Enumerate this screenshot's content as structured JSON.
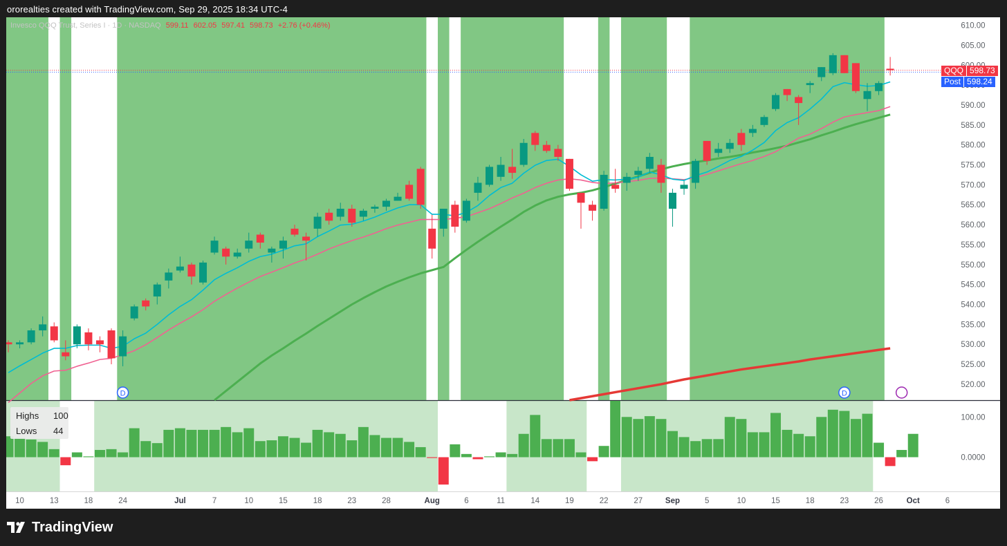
{
  "caption": "ororealties created with TradingView.com, Sep 29, 2025 18:34 UTC-4",
  "brand": "TradingView",
  "colors": {
    "up": "#089981",
    "down": "#f23645",
    "green_band": "#81c784",
    "ema_fast": "#00bcd4",
    "ema_mid": "#f06292",
    "sma_mid": "#4caf50",
    "sma_long": "#e53935",
    "panel_band": "#c8e6c9",
    "hist": "#4caf50",
    "hist_neg": "#f23645"
  },
  "legend": {
    "symbol": "Invesco QQQ Trust, Series I · 1D · NASDAQ",
    "o": "599.11",
    "h": "602.05",
    "l": "597.41",
    "c": "598.73",
    "chg": "+2.76 (+0.46%)"
  },
  "price_tags": [
    {
      "name": "QQQ",
      "value": "598.73",
      "color": "#f23645"
    },
    {
      "name": "Post",
      "value": "598.24",
      "color": "#2962ff"
    }
  ],
  "stats": {
    "highs_label": "Highs",
    "highs_value": "100",
    "lows_label": "Lows",
    "lows_value": "44"
  },
  "chart_data": {
    "type": "candlestick",
    "title": "",
    "y_ticks": [
      520,
      525,
      530,
      535,
      540,
      545,
      550,
      555,
      560,
      565,
      570,
      575,
      580,
      585,
      590,
      595,
      600,
      605,
      610
    ],
    "ylim": [
      516,
      612
    ],
    "x_tick_labels": [
      {
        "label": "10",
        "i": 1
      },
      {
        "label": "13",
        "i": 4
      },
      {
        "label": "18",
        "i": 7
      },
      {
        "label": "24",
        "i": 10
      },
      {
        "label": "Jul",
        "i": 15
      },
      {
        "label": "7",
        "i": 18
      },
      {
        "label": "10",
        "i": 21
      },
      {
        "label": "15",
        "i": 24
      },
      {
        "label": "18",
        "i": 27
      },
      {
        "label": "23",
        "i": 30
      },
      {
        "label": "28",
        "i": 33
      },
      {
        "label": "Aug",
        "i": 37
      },
      {
        "label": "6",
        "i": 40
      },
      {
        "label": "11",
        "i": 43
      },
      {
        "label": "14",
        "i": 46
      },
      {
        "label": "19",
        "i": 49
      },
      {
        "label": "22",
        "i": 52
      },
      {
        "label": "27",
        "i": 55
      },
      {
        "label": "Sep",
        "i": 58
      },
      {
        "label": "5",
        "i": 61
      },
      {
        "label": "10",
        "i": 64
      },
      {
        "label": "15",
        "i": 67
      },
      {
        "label": "18",
        "i": 70
      },
      {
        "label": "23",
        "i": 73
      },
      {
        "label": "26",
        "i": 76
      },
      {
        "label": "Oct",
        "i": 79
      },
      {
        "label": "6",
        "i": 82
      }
    ],
    "candles": [
      [
        530.5,
        531.0,
        528.0,
        530.0
      ],
      [
        530.0,
        531.0,
        529.0,
        530.5
      ],
      [
        530.5,
        534.0,
        530.0,
        533.5
      ],
      [
        533.5,
        537.0,
        532.0,
        535.0
      ],
      [
        534.5,
        535.5,
        530.5,
        531.0
      ],
      [
        528.0,
        531.0,
        526.0,
        527.0
      ],
      [
        530.0,
        535.0,
        529.0,
        534.5
      ],
      [
        533.0,
        534.0,
        528.5,
        530.0
      ],
      [
        531.0,
        532.0,
        528.0,
        530.0
      ],
      [
        533.5,
        534.0,
        525.0,
        526.5
      ],
      [
        527.0,
        533.5,
        524.5,
        532.0
      ],
      [
        536.5,
        540.0,
        536.0,
        539.5
      ],
      [
        541.0,
        541.5,
        538.5,
        539.5
      ],
      [
        542.0,
        545.5,
        540.0,
        545.0
      ],
      [
        546.0,
        549.0,
        544.0,
        548.0
      ],
      [
        548.5,
        552.0,
        548.0,
        549.5
      ],
      [
        550.0,
        550.5,
        545.0,
        547.0
      ],
      [
        545.5,
        551.0,
        545.0,
        550.5
      ],
      [
        553.0,
        557.0,
        552.5,
        556.0
      ],
      [
        554.0,
        554.5,
        550.0,
        552.0
      ],
      [
        552.0,
        554.0,
        551.5,
        553.0
      ],
      [
        554.0,
        558.0,
        553.0,
        556.0
      ],
      [
        557.5,
        558.0,
        554.0,
        555.5
      ],
      [
        553.0,
        554.5,
        550.5,
        554.0
      ],
      [
        554.0,
        557.0,
        551.5,
        556.0
      ],
      [
        559.0,
        560.0,
        557.0,
        557.5
      ],
      [
        557.0,
        558.0,
        551.0,
        556.0
      ],
      [
        559.0,
        563.0,
        557.0,
        562.0
      ],
      [
        563.0,
        564.0,
        560.0,
        561.0
      ],
      [
        562.0,
        565.5,
        561.0,
        564.0
      ],
      [
        564.0,
        565.0,
        559.5,
        560.5
      ],
      [
        562.0,
        564.0,
        561.0,
        563.5
      ],
      [
        564.0,
        565.0,
        563.0,
        564.5
      ],
      [
        564.5,
        566.5,
        563.5,
        566.0
      ],
      [
        566.0,
        568.0,
        566.0,
        567.0
      ],
      [
        570.0,
        571.0,
        566.0,
        566.5
      ],
      [
        574.0,
        574.5,
        564.0,
        565.0
      ],
      [
        559.0,
        562.5,
        551.5,
        554.0
      ],
      [
        559.0,
        564.0,
        557.0,
        564.0
      ],
      [
        565.0,
        566.0,
        558.0,
        559.5
      ],
      [
        561.0,
        566.5,
        560.5,
        566.0
      ],
      [
        568.0,
        572.0,
        566.0,
        570.5
      ],
      [
        570.0,
        575.0,
        569.5,
        574.5
      ],
      [
        572.0,
        577.0,
        571.0,
        575.0
      ],
      [
        574.5,
        579.0,
        571.5,
        573.0
      ],
      [
        575.0,
        581.5,
        574.5,
        580.5
      ],
      [
        583.0,
        583.5,
        578.5,
        580.0
      ],
      [
        580.0,
        581.0,
        578.0,
        578.5
      ],
      [
        579.0,
        580.0,
        576.0,
        577.0
      ],
      [
        576.5,
        576.5,
        568.5,
        569.0
      ],
      [
        568.0,
        568.0,
        559.0,
        565.5
      ],
      [
        565.0,
        566.0,
        561.0,
        563.5
      ],
      [
        564.0,
        573.5,
        563.5,
        572.5
      ],
      [
        570.0,
        574.0,
        568.0,
        569.0
      ],
      [
        570.5,
        573.0,
        568.5,
        572.0
      ],
      [
        572.5,
        574.5,
        571.0,
        573.5
      ],
      [
        574.0,
        578.0,
        573.0,
        577.0
      ],
      [
        575.0,
        576.5,
        568.0,
        570.5
      ],
      [
        564.0,
        569.0,
        559.5,
        568.0
      ],
      [
        569.0,
        571.0,
        567.5,
        570.0
      ],
      [
        570.5,
        576.5,
        569.0,
        576.0
      ],
      [
        581.0,
        581.0,
        575.0,
        576.0
      ],
      [
        578.0,
        580.5,
        577.0,
        579.0
      ],
      [
        579.0,
        581.5,
        578.0,
        580.5
      ],
      [
        583.0,
        584.0,
        578.5,
        580.0
      ],
      [
        583.0,
        585.0,
        582.0,
        584.0
      ],
      [
        585.0,
        587.5,
        584.5,
        587.0
      ],
      [
        589.0,
        593.0,
        588.5,
        592.5
      ],
      [
        594.0,
        594.0,
        591.0,
        592.5
      ],
      [
        592.0,
        592.5,
        585.0,
        590.5
      ],
      [
        595.0,
        596.0,
        593.0,
        595.5
      ],
      [
        597.0,
        599.5,
        596.0,
        599.5
      ],
      [
        598.0,
        603.0,
        597.5,
        602.5
      ],
      [
        602.5,
        602.5,
        598.0,
        598.0
      ],
      [
        600.5,
        600.5,
        593.0,
        593.5
      ],
      [
        591.5,
        595.5,
        588.5,
        593.5
      ],
      [
        593.5,
        596.0,
        592.5,
        595.5
      ],
      [
        599.1,
        602.05,
        597.41,
        598.73
      ]
    ],
    "ema_fast": [
      522.9,
      524.6,
      526.2,
      527.8,
      529.0,
      529.0,
      529.7,
      529.8,
      529.8,
      529.0,
      529.5,
      531.4,
      532.8,
      535.0,
      537.4,
      539.5,
      541.2,
      543.6,
      546.2,
      547.8,
      549.2,
      550.8,
      552.0,
      552.6,
      553.6,
      554.7,
      555.2,
      557.0,
      558.4,
      559.9,
      560.1,
      560.9,
      561.9,
      563.1,
      564.2,
      565.0,
      565.0,
      562.6,
      562.6,
      562.2,
      563.1,
      564.8,
      567.3,
      569.3,
      570.4,
      572.9,
      574.9,
      576.1,
      576.4,
      574.6,
      572.5,
      570.9,
      571.3,
      571.2,
      571.4,
      571.9,
      573.2,
      572.5,
      571.4,
      571.1,
      572.3,
      573.2,
      574.6,
      576.1,
      577.1,
      578.7,
      580.6,
      583.6,
      585.6,
      586.8,
      589.0,
      591.5,
      594.6,
      595.6,
      595.1,
      594.7,
      594.9,
      595.8
    ],
    "ema_mid": [
      515.4,
      517.8,
      520.2,
      522.1,
      523.3,
      523.5,
      524.5,
      525.3,
      526.2,
      526.5,
      527.4,
      528.4,
      529.9,
      531.7,
      533.6,
      535.3,
      536.9,
      538.7,
      540.8,
      542.5,
      544.1,
      545.6,
      547.0,
      548.1,
      549.2,
      550.4,
      551.4,
      552.6,
      553.9,
      555.0,
      556.0,
      556.9,
      557.9,
      559.0,
      559.9,
      560.6,
      561.3,
      561.3,
      561.3,
      561.6,
      562.0,
      563.0,
      564.0,
      565.3,
      566.7,
      567.9,
      569.3,
      570.4,
      571.2,
      571.5,
      571.2,
      570.6,
      570.3,
      570.5,
      570.8,
      571.1,
      571.6,
      571.7,
      571.5,
      571.3,
      571.8,
      572.6,
      573.5,
      574.4,
      575.3,
      576.1,
      577.1,
      578.3,
      580.0,
      581.7,
      582.7,
      584.1,
      585.7,
      587.0,
      587.6,
      588.1,
      588.6,
      589.6
    ],
    "sma_mid": [
      null,
      null,
      null,
      null,
      null,
      null,
      null,
      null,
      null,
      null,
      null,
      null,
      null,
      null,
      null,
      null,
      null,
      null,
      516.0,
      518.3,
      520.6,
      522.9,
      525.2,
      527.2,
      529.0,
      530.9,
      532.7,
      534.6,
      536.4,
      538.2,
      540.0,
      541.6,
      543.1,
      544.5,
      545.7,
      546.8,
      547.8,
      548.6,
      549.4,
      551.6,
      553.7,
      555.7,
      557.6,
      559.5,
      561.3,
      563.2,
      564.8,
      566.1,
      567.0,
      567.6,
      568.0,
      568.6,
      569.4,
      570.3,
      571.2,
      572.1,
      573.0,
      573.9,
      574.6,
      575.2,
      575.7,
      576.1,
      576.6,
      577.0,
      577.5,
      578.1,
      578.6,
      579.2,
      579.8,
      580.6,
      581.4,
      582.4,
      583.3,
      584.3,
      585.2,
      586.0,
      586.8,
      587.6
    ],
    "sma_long": [
      null,
      null,
      null,
      null,
      null,
      null,
      null,
      null,
      null,
      null,
      null,
      null,
      null,
      null,
      null,
      null,
      null,
      null,
      null,
      null,
      null,
      null,
      null,
      null,
      null,
      null,
      null,
      null,
      null,
      null,
      null,
      null,
      null,
      null,
      null,
      null,
      null,
      null,
      null,
      null,
      null,
      null,
      null,
      null,
      null,
      null,
      null,
      null,
      null,
      516.0,
      516.5,
      517.0,
      517.5,
      518.0,
      518.5,
      519.0,
      519.5,
      520.0,
      520.6,
      521.2,
      521.7,
      522.2,
      522.7,
      523.2,
      523.7,
      524.1,
      524.5,
      524.9,
      525.3,
      525.7,
      526.2,
      526.6,
      527.0,
      527.4,
      527.8,
      528.2,
      528.6,
      529.0
    ],
    "band_regions": [
      [
        0,
        3
      ],
      [
        5,
        5
      ],
      [
        10,
        36
      ],
      [
        38,
        38
      ],
      [
        40,
        48
      ],
      [
        52,
        52
      ],
      [
        54,
        57
      ],
      [
        60,
        76
      ]
    ],
    "lower_panel": {
      "type": "bar",
      "y_ticks": [
        0,
        100
      ],
      "y_tick_labels": [
        "0.0000",
        "100.00"
      ],
      "ylim": [
        -85,
        140
      ],
      "values": [
        52,
        48,
        44,
        38,
        20,
        -20,
        12,
        2,
        18,
        20,
        12,
        72,
        40,
        35,
        68,
        72,
        68,
        68,
        68,
        75,
        62,
        72,
        40,
        42,
        52,
        48,
        36,
        68,
        62,
        58,
        42,
        75,
        55,
        48,
        48,
        38,
        25,
        -2,
        -68,
        32,
        8,
        -5,
        2,
        12,
        8,
        58,
        105,
        45,
        45,
        45,
        12,
        -10,
        28,
        140,
        100,
        95,
        102,
        95,
        65,
        50,
        40,
        45,
        45,
        100,
        95,
        62,
        62,
        110,
        68,
        58,
        52,
        100,
        118,
        115,
        95,
        108,
        36,
        -22,
        18,
        58
      ],
      "band_regions": [
        [
          0,
          4
        ],
        [
          8,
          37
        ],
        [
          44,
          50
        ],
        [
          54,
          75
        ]
      ]
    }
  }
}
